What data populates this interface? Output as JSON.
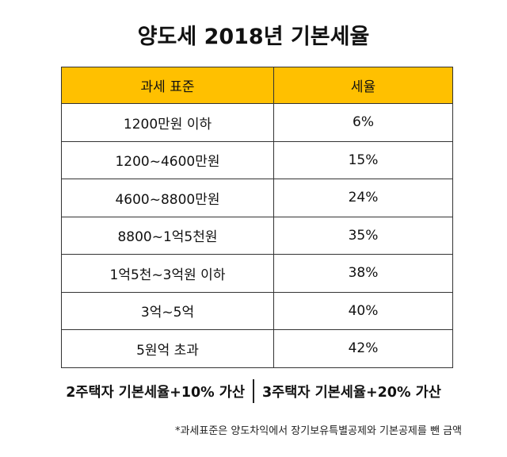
{
  "title": "양도세 2018년 기본세율",
  "table": {
    "headers": [
      "과세 표준",
      "세율"
    ],
    "rows": [
      [
        "1200만원 이하",
        "6%"
      ],
      [
        "1200~4600만원",
        "15%"
      ],
      [
        "4600~8800만원",
        "24%"
      ],
      [
        "8800~1억5천원",
        "35%"
      ],
      [
        "1억5천~3억원 이하",
        "38%"
      ],
      [
        "3억~5억",
        "40%"
      ],
      [
        "5원억 초과",
        "42%"
      ]
    ],
    "header_color": "#ffc000"
  },
  "surcharge": {
    "two_homes": "2주택자 기본세율+10% 가산",
    "three_homes": "3주택자 기본세율+20% 가산"
  },
  "note": "*과세표준은 양도차익에서 장기보유특별공제와 기본공제를 뺀 금액"
}
